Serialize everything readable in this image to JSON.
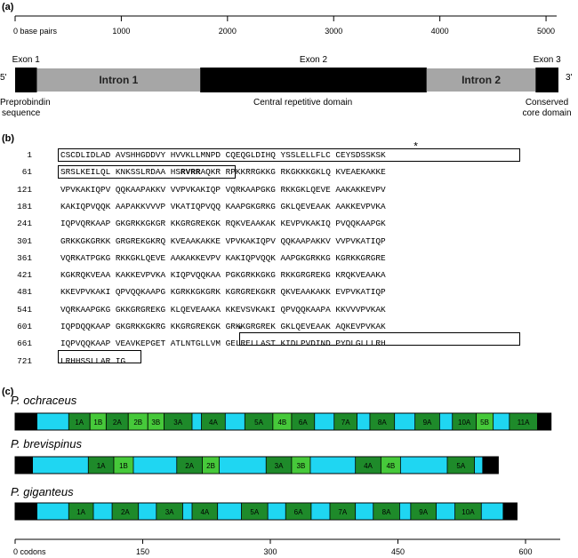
{
  "panel_a": {
    "label": "(a)",
    "scale_ticks": [
      {
        "value": 0,
        "label": "0 base pairs"
      },
      {
        "value": 1000,
        "label": "1000"
      },
      {
        "value": 2000,
        "label": "2000"
      },
      {
        "value": 3000,
        "label": "3000"
      },
      {
        "value": 4000,
        "label": "4000"
      },
      {
        "value": 5000,
        "label": "5000"
      }
    ],
    "scale_max": 5100,
    "five_prime": "5'",
    "three_prime": "3'",
    "segments": [
      {
        "name": "Exon 1",
        "kind": "exon",
        "start": 0,
        "end": 200,
        "label": "Exon 1"
      },
      {
        "name": "Intron 1",
        "kind": "intron",
        "start": 200,
        "end": 1700,
        "label": "Intron 1"
      },
      {
        "name": "Exon 2",
        "kind": "exon",
        "start": 1700,
        "end": 3780,
        "label": "Exon 2"
      },
      {
        "name": "Intron 2",
        "kind": "intron",
        "start": 3780,
        "end": 4780,
        "label": "Intron 2"
      },
      {
        "name": "Exon 3",
        "kind": "exon",
        "start": 4780,
        "end": 4990,
        "label": "Exon 3"
      }
    ],
    "domains": {
      "preprobindin_1": "Preprobindin",
      "preprobindin_2": "sequence",
      "central": "Central repetitive domain",
      "conserved_1": "Conserved",
      "conserved_2": "core domain"
    },
    "colors": {
      "exon": "#000000",
      "intron": "#a6a6a6"
    }
  },
  "panel_b": {
    "label": "(b)",
    "star": "*",
    "lines": [
      {
        "num": "1",
        "seq": "CSCDLIDLAD AVSHHGDDVY HVVKLLMNPD CQEQGLDIHQ YSSLELLFLC CEYSDSSKSK"
      },
      {
        "num": "61",
        "seq_a": "SRSLKEILQL KNKSSLRDAA HS",
        "seq_bold": "RVRR",
        "seq_b": "AQKR RPKKRRGKKG RKGKKKGKLQ KVEAEKAKKE"
      },
      {
        "num": "121",
        "seq": "VPVKAKIQPV QQKAAPAKKV VVPVKAKIQP VQRKAAPGKG RKKGKLQEVE AAKAKKEVPV"
      },
      {
        "num": "181",
        "seq": "KAKIQPVQQK AAPAKKVVVP VKATIQPVQQ KAAPGKGRKG GKLQEVEAAK AAKKEVPVKA"
      },
      {
        "num": "241",
        "seq": "IQPVQRKAAP GKGRKKGKGR KKGRGREKGK RQKVEAAKAK KEVPVKAKIQ PVQQKAAPGK"
      },
      {
        "num": "301",
        "seq": "GRKKGKGRKK GRGREKGKRQ KVEAAKAKKE VPVKAKIQPV QQKAAPAKKV VVPVKATIQP"
      },
      {
        "num": "361",
        "seq": "VQRKATPGKG RKKGKLQEVE AAKAKKEVPV KAKIQPVQQK AAPGKGRKKG KGRKKGRGRE"
      },
      {
        "num": "421",
        "seq": "KGKRQKVEAA KAKKEVPVKA KIQPVQQKAA PGKGRKKGKG RKKGRGREKG KRQKVEAAKA"
      },
      {
        "num": "481",
        "seq": "KKEVPVKAKI QPVQQKAAPG KGRKKGKGRK KGRGREKGKR QKVEAAKAKK EVPVKATIQP"
      },
      {
        "num": "541",
        "seq": "VQRKAAPGKG GKKGRGREKG KLQEVEAAKA KKEVSVKAKI QPVQQKAAPA KKVVVPVKAK"
      },
      {
        "num": "601",
        "seq": "IQPDQQKAAP GKGRKKGKRG KKGRGREKGK GRKKGRGREK GKLQEVEAAK AQKEVPVKAK"
      },
      {
        "num": "661",
        "seq": "IQPVQQKAAP VEAVKEPGET ATLNTGLLVM GELRELLAST KIDLPVDIND PYDLGLLLRH"
      },
      {
        "num": "721",
        "seq": "LRHHSSLLAR IG"
      }
    ]
  },
  "panel_c": {
    "label": "(c)",
    "axis_ticks": [
      {
        "value": 0,
        "label": "0 codons"
      },
      {
        "value": 150,
        "label": "150"
      },
      {
        "value": 300,
        "label": "300"
      },
      {
        "value": 450,
        "label": "450"
      },
      {
        "value": 600,
        "label": "600"
      }
    ],
    "axis_max": 650,
    "colors": {
      "end": "#000000",
      "spacer": "#1fd6f2",
      "A": "#1e8a2a",
      "B": "#46c93a"
    },
    "species": [
      {
        "name": "P. ochraceus",
        "length": 630,
        "repeats": [
          {
            "label": "1A",
            "type": "A",
            "start": 63,
            "end": 88
          },
          {
            "label": "1B",
            "type": "B",
            "start": 88,
            "end": 107
          },
          {
            "label": "2A",
            "type": "A",
            "start": 107,
            "end": 133
          },
          {
            "label": "2B",
            "type": "B",
            "start": 133,
            "end": 156
          },
          {
            "label": "3B",
            "type": "B",
            "start": 156,
            "end": 175
          },
          {
            "label": "3A",
            "type": "A",
            "start": 175,
            "end": 208
          },
          {
            "label": "4A",
            "type": "A",
            "start": 219,
            "end": 247
          },
          {
            "label": "5A",
            "type": "A",
            "start": 270,
            "end": 303
          },
          {
            "label": "4B",
            "type": "B",
            "start": 303,
            "end": 325
          },
          {
            "label": "6A",
            "type": "A",
            "start": 325,
            "end": 352
          },
          {
            "label": "7A",
            "type": "A",
            "start": 375,
            "end": 402
          },
          {
            "label": "8A",
            "type": "A",
            "start": 417,
            "end": 446
          },
          {
            "label": "9A",
            "type": "A",
            "start": 470,
            "end": 499
          },
          {
            "label": "10A",
            "type": "A",
            "start": 514,
            "end": 542
          },
          {
            "label": "5B",
            "type": "B",
            "start": 542,
            "end": 562
          },
          {
            "label": "11A",
            "type": "A",
            "start": 581,
            "end": 614
          }
        ]
      },
      {
        "name": "P. brevispinus",
        "length": 568,
        "repeats": [
          {
            "label": "1A",
            "type": "A",
            "start": 86,
            "end": 116
          },
          {
            "label": "1B",
            "type": "B",
            "start": 116,
            "end": 139
          },
          {
            "label": "2A",
            "type": "A",
            "start": 190,
            "end": 220
          },
          {
            "label": "2B",
            "type": "B",
            "start": 220,
            "end": 240
          },
          {
            "label": "3A",
            "type": "A",
            "start": 295,
            "end": 325
          },
          {
            "label": "3B",
            "type": "B",
            "start": 325,
            "end": 347
          },
          {
            "label": "4A",
            "type": "A",
            "start": 400,
            "end": 430
          },
          {
            "label": "4B",
            "type": "B",
            "start": 430,
            "end": 453
          },
          {
            "label": "5A",
            "type": "A",
            "start": 508,
            "end": 540
          }
        ]
      },
      {
        "name": "P. giganteus",
        "length": 590,
        "repeats": [
          {
            "label": "1A",
            "type": "A",
            "start": 63,
            "end": 92
          },
          {
            "label": "2A",
            "type": "A",
            "start": 114,
            "end": 145
          },
          {
            "label": "3A",
            "type": "A",
            "start": 166,
            "end": 197
          },
          {
            "label": "4A",
            "type": "A",
            "start": 208,
            "end": 238
          },
          {
            "label": "5A",
            "type": "A",
            "start": 266,
            "end": 297
          },
          {
            "label": "6A",
            "type": "A",
            "start": 318,
            "end": 348
          },
          {
            "label": "7A",
            "type": "A",
            "start": 370,
            "end": 400
          },
          {
            "label": "8A",
            "type": "A",
            "start": 421,
            "end": 452
          },
          {
            "label": "9A",
            "type": "A",
            "start": 465,
            "end": 495
          },
          {
            "label": "10A",
            "type": "A",
            "start": 517,
            "end": 548
          }
        ]
      }
    ]
  }
}
